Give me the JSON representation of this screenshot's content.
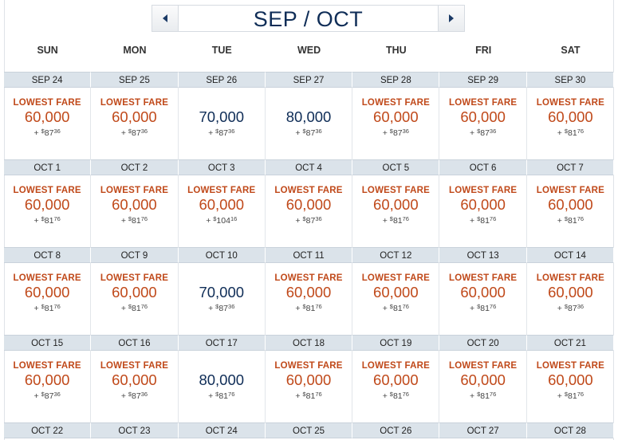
{
  "header": {
    "title": "SEP / OCT"
  },
  "weekdays": [
    "SUN",
    "MON",
    "TUE",
    "WED",
    "THU",
    "FRI",
    "SAT"
  ],
  "colors": {
    "lowest": "#c0491a",
    "regular": "#0f2d57",
    "date_bar": "#dbe3ea"
  },
  "weeks": [
    {
      "dates": [
        "SEP 24",
        "SEP 25",
        "SEP 26",
        "SEP 27",
        "SEP 28",
        "SEP 29",
        "SEP 30"
      ],
      "fares": [
        {
          "tag": "LOWEST FARE",
          "miles": "60,000",
          "tax": "87",
          "cents": "36",
          "lowest": true
        },
        {
          "tag": "LOWEST FARE",
          "miles": "60,000",
          "tax": "87",
          "cents": "36",
          "lowest": true
        },
        {
          "tag": "",
          "miles": "70,000",
          "tax": "87",
          "cents": "36",
          "lowest": false
        },
        {
          "tag": "",
          "miles": "80,000",
          "tax": "87",
          "cents": "36",
          "lowest": false
        },
        {
          "tag": "LOWEST FARE",
          "miles": "60,000",
          "tax": "87",
          "cents": "36",
          "lowest": true
        },
        {
          "tag": "LOWEST FARE",
          "miles": "60,000",
          "tax": "87",
          "cents": "36",
          "lowest": true
        },
        {
          "tag": "LOWEST FARE",
          "miles": "60,000",
          "tax": "81",
          "cents": "76",
          "lowest": true
        }
      ]
    },
    {
      "dates": [
        "OCT 1",
        "OCT 2",
        "OCT 3",
        "OCT 4",
        "OCT 5",
        "OCT 6",
        "OCT 7"
      ],
      "fares": [
        {
          "tag": "LOWEST FARE",
          "miles": "60,000",
          "tax": "81",
          "cents": "76",
          "lowest": true
        },
        {
          "tag": "LOWEST FARE",
          "miles": "60,000",
          "tax": "81",
          "cents": "76",
          "lowest": true
        },
        {
          "tag": "LOWEST FARE",
          "miles": "60,000",
          "tax": "104",
          "cents": "16",
          "lowest": true
        },
        {
          "tag": "LOWEST FARE",
          "miles": "60,000",
          "tax": "87",
          "cents": "36",
          "lowest": true
        },
        {
          "tag": "LOWEST FARE",
          "miles": "60,000",
          "tax": "81",
          "cents": "76",
          "lowest": true
        },
        {
          "tag": "LOWEST FARE",
          "miles": "60,000",
          "tax": "81",
          "cents": "76",
          "lowest": true
        },
        {
          "tag": "LOWEST FARE",
          "miles": "60,000",
          "tax": "81",
          "cents": "76",
          "lowest": true
        }
      ]
    },
    {
      "dates": [
        "OCT 8",
        "OCT 9",
        "OCT 10",
        "OCT 11",
        "OCT 12",
        "OCT 13",
        "OCT 14"
      ],
      "fares": [
        {
          "tag": "LOWEST FARE",
          "miles": "60,000",
          "tax": "81",
          "cents": "76",
          "lowest": true
        },
        {
          "tag": "LOWEST FARE",
          "miles": "60,000",
          "tax": "81",
          "cents": "76",
          "lowest": true
        },
        {
          "tag": "",
          "miles": "70,000",
          "tax": "87",
          "cents": "36",
          "lowest": false
        },
        {
          "tag": "LOWEST FARE",
          "miles": "60,000",
          "tax": "81",
          "cents": "76",
          "lowest": true
        },
        {
          "tag": "LOWEST FARE",
          "miles": "60,000",
          "tax": "81",
          "cents": "76",
          "lowest": true
        },
        {
          "tag": "LOWEST FARE",
          "miles": "60,000",
          "tax": "81",
          "cents": "76",
          "lowest": true
        },
        {
          "tag": "LOWEST FARE",
          "miles": "60,000",
          "tax": "87",
          "cents": "36",
          "lowest": true
        }
      ]
    },
    {
      "dates": [
        "OCT 15",
        "OCT 16",
        "OCT 17",
        "OCT 18",
        "OCT 19",
        "OCT 20",
        "OCT 21"
      ],
      "fares": [
        {
          "tag": "LOWEST FARE",
          "miles": "60,000",
          "tax": "87",
          "cents": "36",
          "lowest": true
        },
        {
          "tag": "LOWEST FARE",
          "miles": "60,000",
          "tax": "87",
          "cents": "36",
          "lowest": true
        },
        {
          "tag": "",
          "miles": "80,000",
          "tax": "81",
          "cents": "76",
          "lowest": false
        },
        {
          "tag": "LOWEST FARE",
          "miles": "60,000",
          "tax": "81",
          "cents": "76",
          "lowest": true
        },
        {
          "tag": "LOWEST FARE",
          "miles": "60,000",
          "tax": "81",
          "cents": "76",
          "lowest": true
        },
        {
          "tag": "LOWEST FARE",
          "miles": "60,000",
          "tax": "81",
          "cents": "76",
          "lowest": true
        },
        {
          "tag": "LOWEST FARE",
          "miles": "60,000",
          "tax": "81",
          "cents": "76",
          "lowest": true
        }
      ]
    },
    {
      "dates": [
        "OCT 22",
        "OCT 23",
        "OCT 24",
        "OCT 25",
        "OCT 26",
        "OCT 27",
        "OCT 28"
      ],
      "fares": []
    }
  ]
}
